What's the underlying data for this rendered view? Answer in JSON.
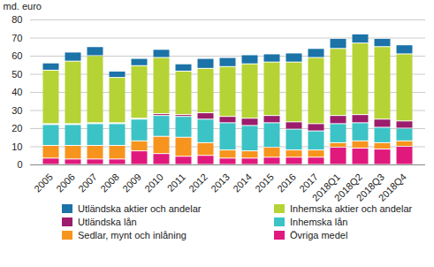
{
  "chart_data": {
    "type": "bar",
    "stacked": true,
    "grid": true,
    "legend": "bottom",
    "y_label": "md. euro",
    "categories": [
      "2005",
      "2006",
      "2007",
      "2008",
      "2009",
      "2010",
      "2011",
      "2012",
      "2013",
      "2014",
      "2015",
      "2016",
      "2017",
      "2018Q1",
      "2018Q2",
      "2018Q3",
      "2018Q4"
    ],
    "ylim": [
      0,
      80
    ],
    "yticks": [
      0,
      10,
      20,
      30,
      40,
      50,
      60,
      70,
      80
    ],
    "series": [
      {
        "name": "Övriga medel",
        "color": "#e0197d",
        "values": [
          3.5,
          3,
          3,
          3,
          7.5,
          6,
          4.5,
          5,
          3.5,
          3.5,
          4,
          4,
          4,
          9.5,
          9,
          8.5,
          10
        ]
      },
      {
        "name": "Sedlar, mynt och inlåning",
        "color": "#f7941d",
        "values": [
          7,
          7.5,
          7.5,
          7.5,
          5.5,
          9.5,
          10.5,
          7,
          4.5,
          4,
          5.5,
          4,
          4,
          2.5,
          4,
          3.5,
          3
        ]
      },
      {
        "name": "Inhemska lån",
        "color": "#3cc3c6",
        "values": [
          11.5,
          11.5,
          12,
          12,
          12,
          11.5,
          11.5,
          13,
          15,
          14,
          13.5,
          11.5,
          10.5,
          10.5,
          10,
          8.5,
          7
        ]
      },
      {
        "name": "Utländska lån",
        "color": "#9b1d6c",
        "values": [
          0.5,
          0.5,
          0.5,
          0.5,
          0.5,
          1,
          1,
          3.5,
          3.5,
          4,
          4,
          4,
          4,
          4.5,
          4.5,
          4.5,
          4
        ]
      },
      {
        "name": "Inhemska aktier och andelar",
        "color": "#b5d334",
        "values": [
          29.5,
          34.5,
          37,
          25,
          29,
          31,
          24,
          24.5,
          27.5,
          30,
          29.5,
          33,
          36.5,
          37,
          39.5,
          40,
          37
        ]
      },
      {
        "name": "Utländska aktier och andelar",
        "color": "#1b73a8",
        "values": [
          4,
          5,
          5,
          3.5,
          4,
          4.5,
          4,
          5.5,
          5,
          5,
          4.5,
          5,
          5,
          5.5,
          5,
          4.5,
          5
        ]
      }
    ]
  }
}
